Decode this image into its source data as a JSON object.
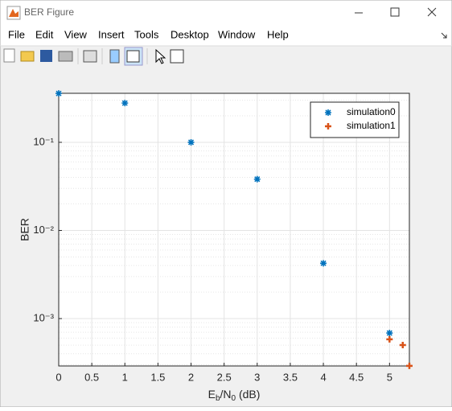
{
  "window": {
    "title": "BER Figure",
    "menu": [
      "File",
      "Edit",
      "View",
      "Insert",
      "Tools",
      "Desktop",
      "Window",
      "Help"
    ]
  },
  "chart_data": {
    "type": "scatter",
    "xlabel": [
      "E",
      "b",
      "/N",
      "0",
      " (dB)"
    ],
    "ylabel": "BER",
    "xlim": [
      0,
      5.3
    ],
    "ylim": [
      0.00029,
      0.36
    ],
    "log_y": true,
    "grid": true,
    "minor_grid": true,
    "xticks": [
      0,
      0.5,
      1,
      1.5,
      2,
      2.5,
      3,
      3.5,
      4,
      4.5,
      5
    ],
    "yticks": [
      {
        "value": 0.001,
        "label": "10⁻³"
      },
      {
        "value": 0.01,
        "label": "10⁻²"
      },
      {
        "value": 0.1,
        "label": "10⁻¹"
      }
    ],
    "legend": "top-right",
    "series": [
      {
        "name": "simulation0",
        "color": "#0072bd",
        "marker": "asterisk",
        "x": [
          0,
          1,
          2,
          3,
          4,
          5
        ],
        "values": [
          0.359,
          0.279,
          0.1,
          0.0382,
          0.00424,
          0.000686
        ]
      },
      {
        "name": "simulation1",
        "color": "#d95319",
        "marker": "plus",
        "x": [
          5,
          5.2,
          5.3
        ],
        "values": [
          0.000581,
          0.000501,
          0.000291
        ]
      }
    ]
  }
}
